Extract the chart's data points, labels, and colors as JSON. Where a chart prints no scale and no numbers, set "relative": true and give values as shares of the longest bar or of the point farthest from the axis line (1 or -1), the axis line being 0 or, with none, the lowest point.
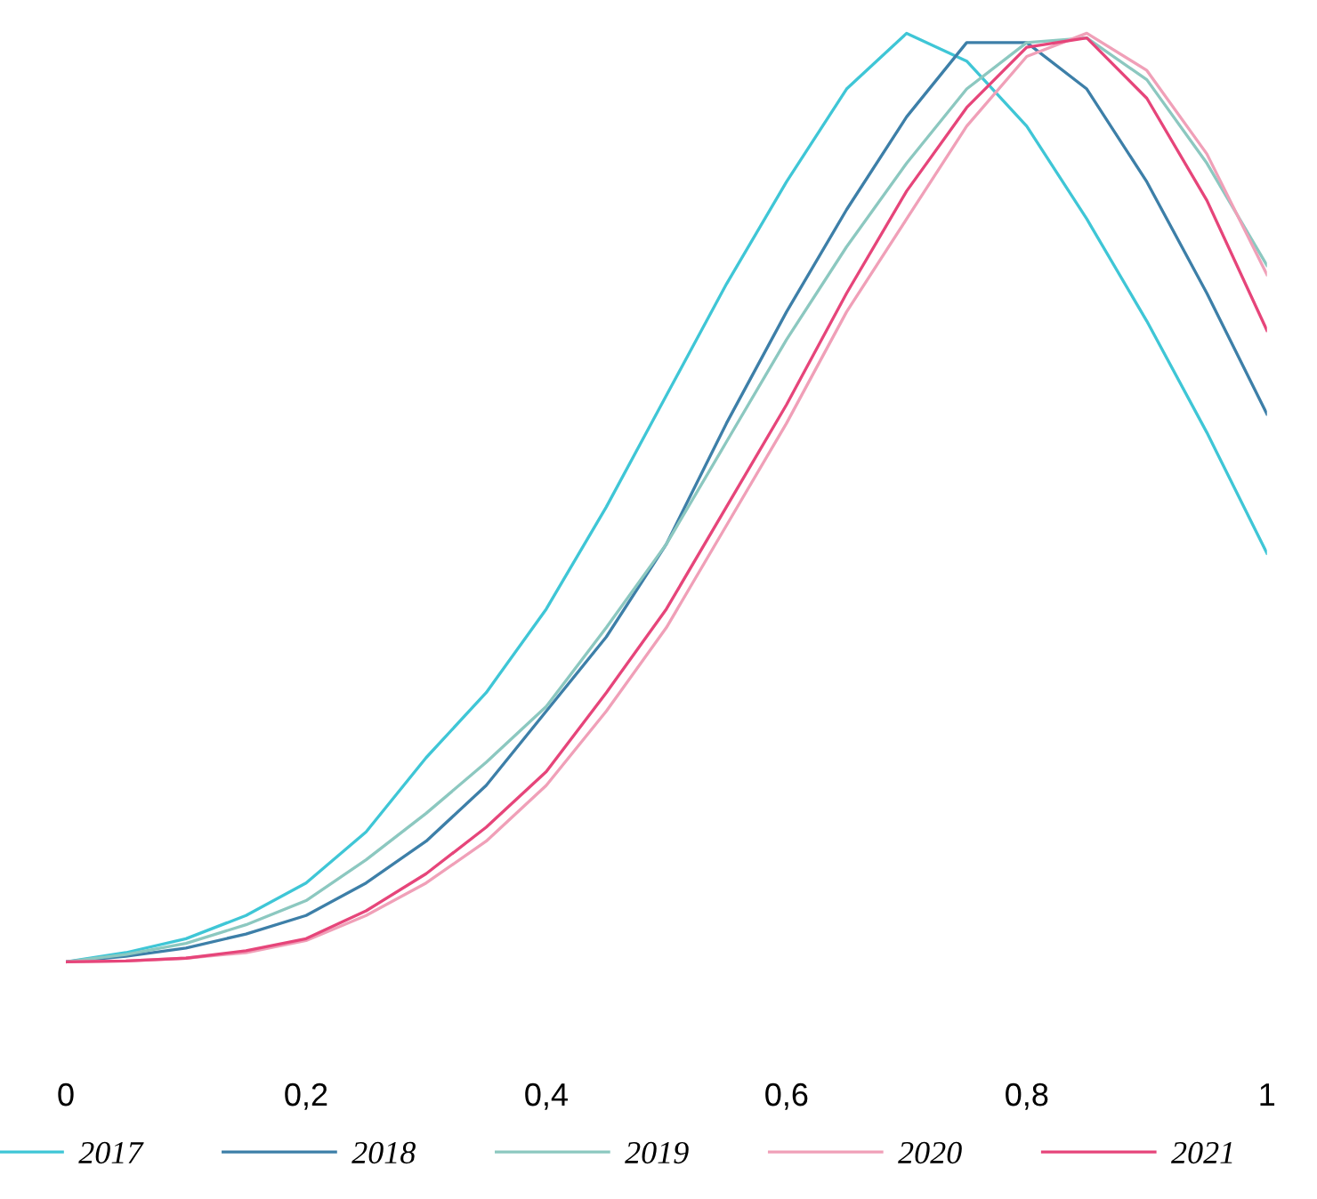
{
  "chart_data": {
    "type": "line",
    "relative": true,
    "xlim": [
      0,
      1
    ],
    "xticks": [
      0,
      {
        "value": 0.2,
        "label": "0,2"
      },
      {
        "value": 0.4,
        "label": "0,4"
      },
      {
        "value": 0.6,
        "label": "0,6"
      },
      {
        "value": 0.8,
        "label": "0,8"
      },
      1
    ],
    "tick_labels": "x",
    "grid": false,
    "legend": "bottom",
    "marker": "none",
    "line_style": "solid",
    "x": [
      0,
      0.05,
      0.1,
      0.15,
      0.2,
      0.25,
      0.3,
      0.35,
      0.4,
      0.45,
      0.5,
      0.55,
      0.6,
      0.65,
      0.7,
      0.75,
      0.8,
      0.85,
      0.9,
      0.95,
      1
    ],
    "series": [
      {
        "name": "2017",
        "color": "#3fc6d6",
        "values": [
          0,
          0.01,
          0.025,
          0.05,
          0.085,
          0.14,
          0.22,
          0.29,
          0.38,
          0.49,
          0.61,
          0.73,
          0.84,
          0.94,
          1.0,
          0.97,
          0.9,
          0.8,
          0.69,
          0.57,
          0.44
        ]
      },
      {
        "name": "2018",
        "color": "#3d7fa8",
        "values": [
          0,
          0.006,
          0.015,
          0.03,
          0.05,
          0.085,
          0.13,
          0.19,
          0.27,
          0.35,
          0.45,
          0.58,
          0.7,
          0.81,
          0.91,
          0.99,
          0.99,
          0.94,
          0.84,
          0.72,
          0.59
        ]
      },
      {
        "name": "2019",
        "color": "#8cc8c0",
        "values": [
          0,
          0.008,
          0.02,
          0.04,
          0.066,
          0.11,
          0.16,
          0.215,
          0.275,
          0.36,
          0.45,
          0.56,
          0.67,
          0.77,
          0.86,
          0.94,
          0.99,
          0.995,
          0.95,
          0.86,
          0.75
        ]
      },
      {
        "name": "2020",
        "color": "#f0a0b8",
        "values": [
          0,
          0.001,
          0.004,
          0.01,
          0.023,
          0.05,
          0.085,
          0.13,
          0.19,
          0.27,
          0.36,
          0.47,
          0.58,
          0.7,
          0.8,
          0.9,
          0.975,
          1.0,
          0.96,
          0.87,
          0.74
        ]
      },
      {
        "name": "2021",
        "color": "#e6457a",
        "values": [
          0,
          0.001,
          0.004,
          0.012,
          0.025,
          0.055,
          0.095,
          0.145,
          0.205,
          0.29,
          0.38,
          0.49,
          0.6,
          0.72,
          0.83,
          0.92,
          0.985,
          0.995,
          0.93,
          0.82,
          0.68
        ]
      }
    ]
  }
}
